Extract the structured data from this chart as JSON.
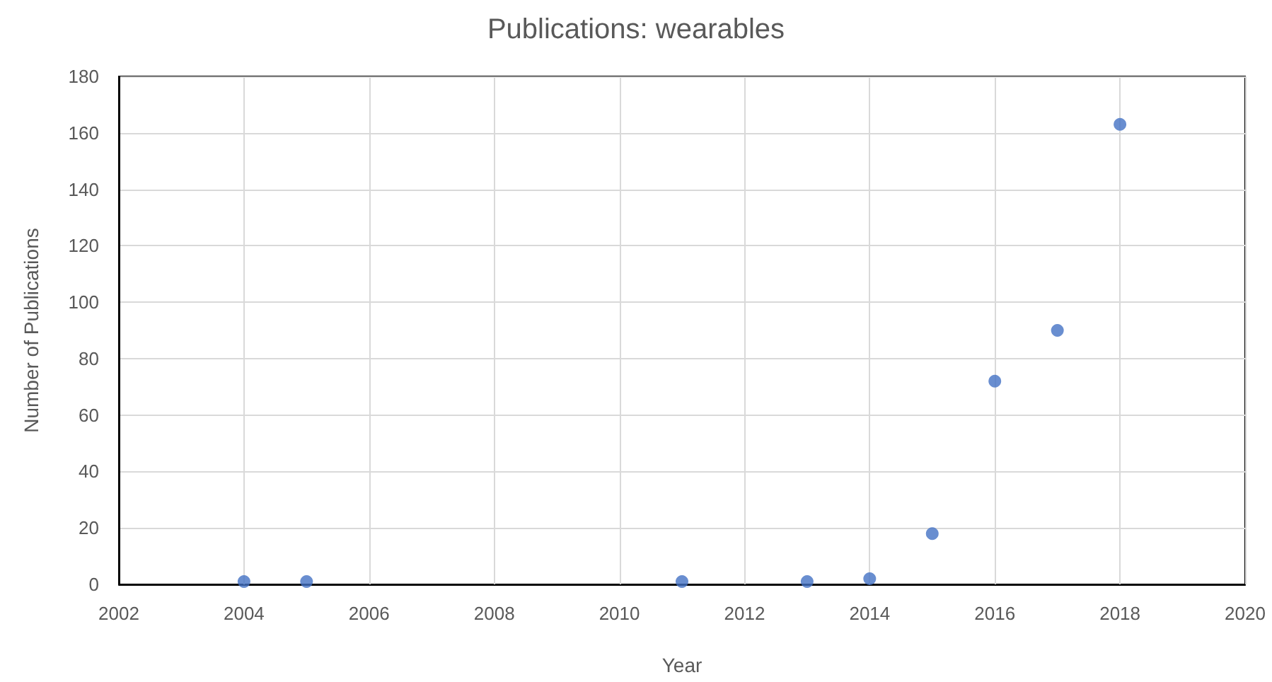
{
  "chart_data": {
    "type": "scatter",
    "title": "Publications: wearables",
    "xlabel": "Year",
    "ylabel": "Number of Publications",
    "x": [
      2004,
      2005,
      2011,
      2013,
      2014,
      2015,
      2016,
      2017,
      2018
    ],
    "series": [
      {
        "color": "#4472c4",
        "values": [
          1,
          1,
          1,
          1,
          2,
          18,
          72,
          90,
          163
        ]
      }
    ],
    "xlim": [
      2002,
      2020
    ],
    "xticks": [
      2002,
      2004,
      2006,
      2008,
      2010,
      2012,
      2014,
      2016,
      2018,
      2020
    ],
    "ylim": [
      0,
      180
    ],
    "yticks": [
      0,
      20,
      40,
      60,
      80,
      100,
      120,
      140,
      160,
      180
    ],
    "grid": true,
    "marker": "circle"
  }
}
